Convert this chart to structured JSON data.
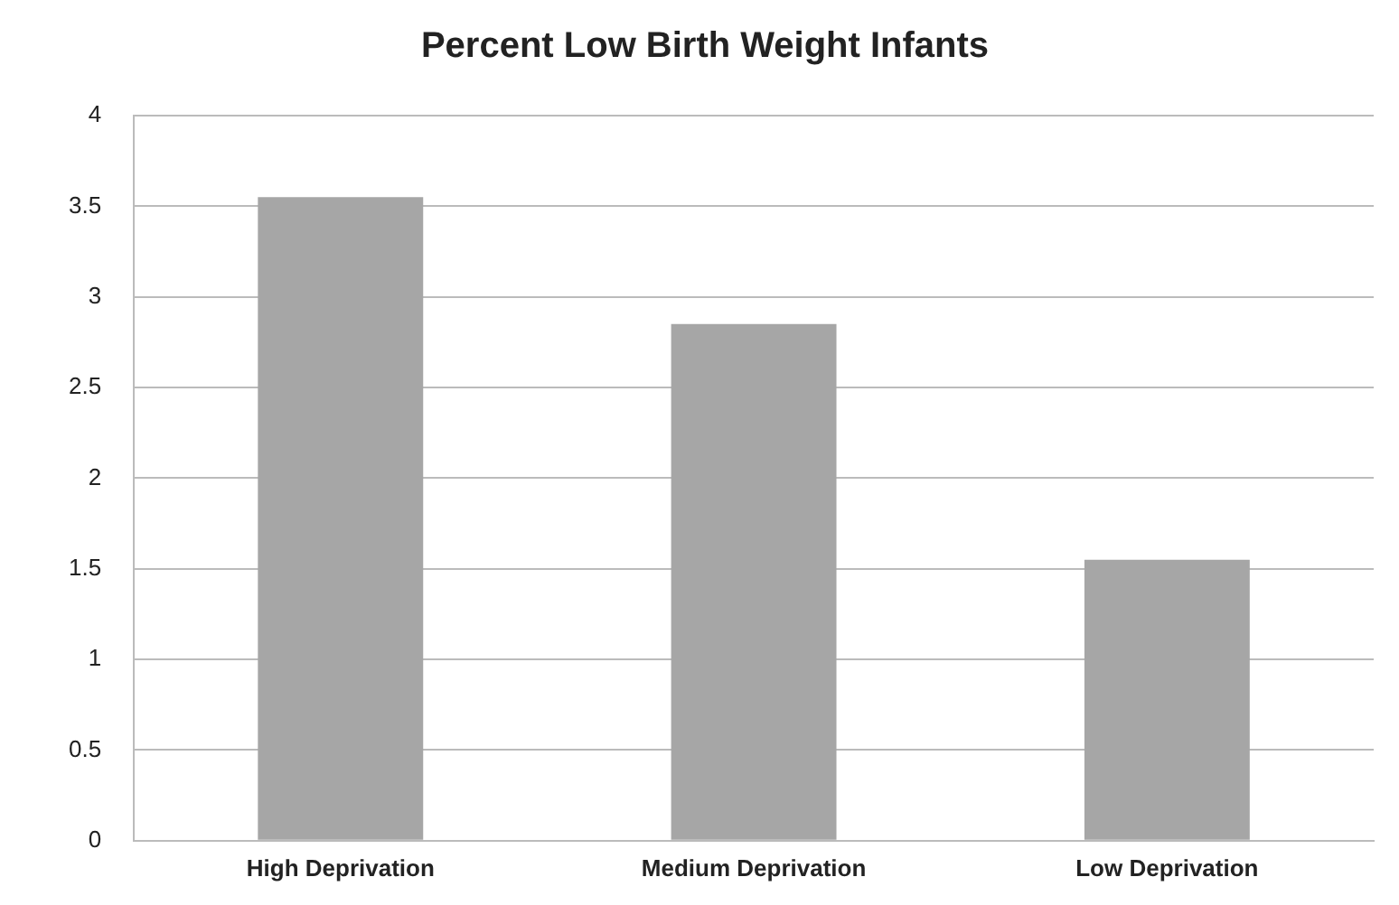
{
  "chart_data": {
    "type": "bar",
    "title": "Percent Low Birth Weight Infants",
    "categories": [
      "High Deprivation",
      "Medium Deprivation",
      "Low Deprivation"
    ],
    "values": [
      3.55,
      2.85,
      1.55
    ],
    "color": "#a6a6a6",
    "ylim": [
      0,
      4
    ],
    "yticks": [
      0,
      0.5,
      1,
      1.5,
      2,
      2.5,
      3,
      3.5,
      4
    ],
    "grid": "y",
    "legend": false
  }
}
